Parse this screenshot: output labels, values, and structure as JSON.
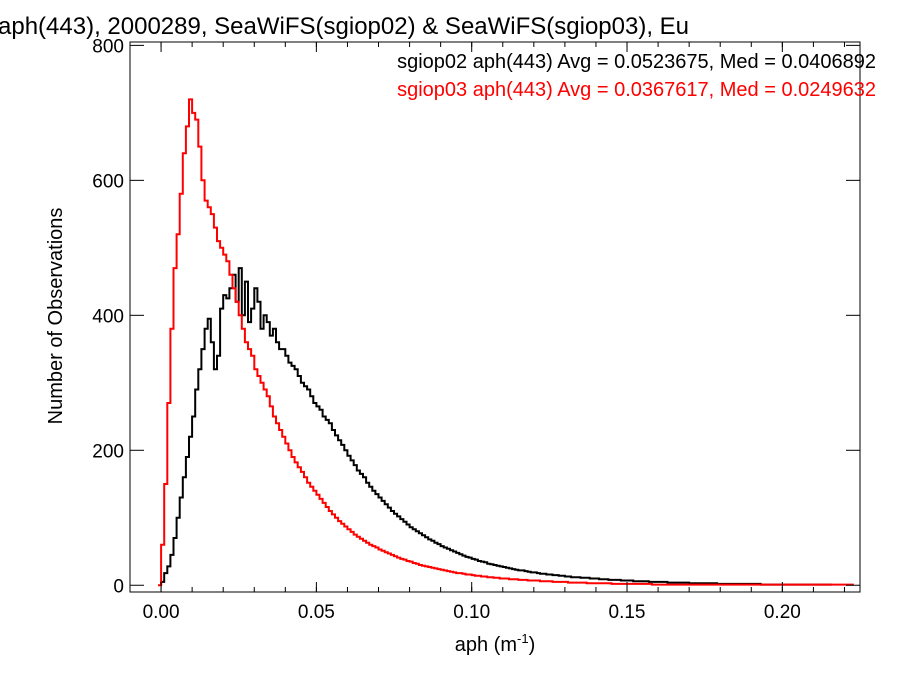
{
  "chart_data": {
    "type": "histogram",
    "title": "aph(443), 2000289, SeaWiFS(sgiop02) & SeaWiFS(sgiop03), Eu",
    "xlabel": "aph (m",
    "xlabel_exponent": "-1",
    "xlabel_suffix": ")",
    "ylabel": "Number of Observations",
    "xlim": [
      -0.01,
      0.225
    ],
    "ylim": [
      -10,
      805
    ],
    "x_ticks": [
      0.0,
      0.05,
      0.1,
      0.15,
      0.2
    ],
    "x_tick_labels": [
      "0.00",
      "0.05",
      "0.10",
      "0.15",
      "0.20"
    ],
    "y_ticks": [
      0,
      200,
      400,
      600,
      800
    ],
    "y_tick_labels": [
      "0",
      "200",
      "400",
      "600",
      "800"
    ],
    "bin_width": 0.001,
    "legend_position": "top-right",
    "series": [
      {
        "name": "sgiop02 aph(443) Avg = 0.0523675, Med = 0.0406892",
        "color": "#000000",
        "x_start": 0.0,
        "values": [
          5,
          18,
          28,
          45,
          70,
          100,
          130,
          160,
          190,
          220,
          250,
          290,
          320,
          350,
          380,
          395,
          360,
          320,
          340,
          410,
          430,
          425,
          440,
          460,
          420,
          470,
          400,
          450,
          390,
          410,
          440,
          420,
          380,
          400,
          390,
          370,
          380,
          360,
          350,
          350,
          340,
          330,
          325,
          320,
          310,
          300,
          295,
          290,
          280,
          270,
          265,
          260,
          250,
          245,
          240,
          230,
          222,
          215,
          208,
          200,
          192,
          185,
          178,
          170,
          165,
          160,
          152,
          146,
          140,
          135,
          130,
          125,
          120,
          115,
          110,
          106,
          102,
          98,
          94,
          90,
          86,
          83,
          80,
          77,
          74,
          71,
          68,
          66,
          63,
          61,
          58,
          56,
          54,
          52,
          50,
          48,
          46,
          44,
          42,
          41,
          39,
          38,
          36,
          35,
          34,
          32,
          31,
          30,
          29,
          28,
          27,
          26,
          25,
          24,
          23,
          22,
          22,
          21,
          20,
          19,
          19,
          18,
          17,
          17,
          16,
          16,
          15,
          15,
          14,
          14,
          13,
          13,
          12,
          12,
          12,
          11,
          11,
          11,
          10,
          10,
          10,
          9,
          9,
          9,
          8,
          8,
          8,
          8,
          7,
          7,
          7,
          7,
          6,
          6,
          6,
          6,
          6,
          5,
          5,
          5,
          5,
          5,
          5,
          4,
          4,
          4,
          4,
          4,
          4,
          4,
          3,
          3,
          3,
          3,
          3,
          3,
          3,
          3,
          3,
          2,
          2,
          2,
          2,
          2,
          2,
          2,
          2,
          2,
          2,
          2,
          2,
          2,
          2,
          1,
          1,
          1,
          1,
          1,
          1,
          1,
          1,
          1,
          1,
          1,
          1,
          1,
          1,
          1,
          1,
          1,
          1,
          1,
          1,
          1,
          1,
          1
        ]
      },
      {
        "name": "sgiop03 aph(443) Avg = 0.0367617, Med = 0.0249632",
        "color": "#ff0000",
        "x_start": -0.001,
        "values": [
          0,
          60,
          150,
          270,
          380,
          470,
          520,
          580,
          640,
          680,
          720,
          700,
          690,
          650,
          600,
          570,
          560,
          550,
          530,
          510,
          500,
          490,
          480,
          460,
          440,
          420,
          400,
          380,
          360,
          350,
          340,
          320,
          310,
          300,
          290,
          280,
          265,
          250,
          240,
          230,
          220,
          210,
          200,
          190,
          182,
          175,
          168,
          160,
          152,
          146,
          140,
          134,
          128,
          122,
          116,
          110,
          105,
          100,
          95,
          91,
          87,
          83,
          79,
          75,
          72,
          69,
          66,
          63,
          60,
          58,
          56,
          53,
          51,
          49,
          47,
          45,
          43,
          41,
          39,
          38,
          36,
          35,
          33,
          32,
          30,
          29,
          28,
          27,
          26,
          25,
          24,
          23,
          22,
          21,
          20,
          19,
          18,
          18,
          17,
          16,
          16,
          15,
          14,
          14,
          13,
          13,
          12,
          12,
          11,
          11,
          10,
          10,
          10,
          9,
          9,
          9,
          8,
          8,
          8,
          7,
          7,
          7,
          7,
          6,
          6,
          6,
          6,
          5,
          5,
          5,
          5,
          5,
          4,
          4,
          4,
          4,
          4,
          4,
          3,
          3,
          3,
          3,
          3,
          3,
          3,
          3,
          2,
          2,
          2,
          2,
          2,
          2,
          2,
          2,
          2,
          2,
          2,
          2,
          2,
          1,
          1,
          1,
          1,
          1,
          1,
          1,
          1,
          1,
          1,
          1,
          1,
          1,
          1,
          1,
          1,
          1,
          1,
          1,
          1,
          1,
          1,
          1,
          1,
          1,
          1,
          1,
          1,
          1,
          1,
          1,
          1,
          1,
          1,
          1,
          1,
          1,
          1,
          1,
          1,
          1,
          1,
          1,
          1,
          1,
          1,
          1,
          1,
          1,
          1,
          1,
          1,
          1,
          1,
          1,
          1,
          1,
          1,
          1,
          1,
          1,
          1,
          1,
          1,
          1
        ]
      }
    ]
  }
}
